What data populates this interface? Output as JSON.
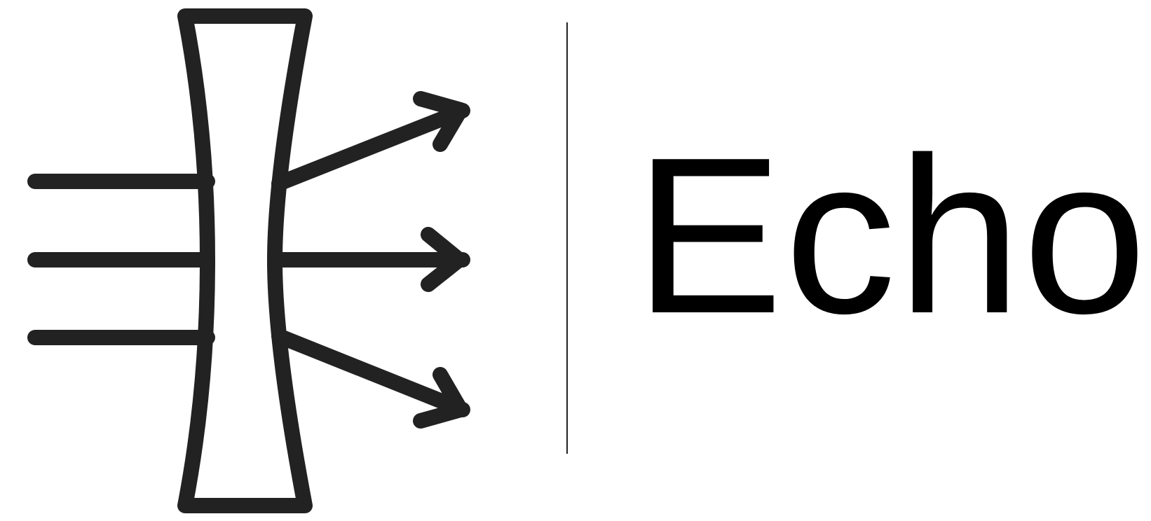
{
  "brand": {
    "name": "Echo",
    "icon": "concave-lens-icon",
    "colors": {
      "mark": "#222222",
      "text": "#000000",
      "background": "#ffffff"
    }
  }
}
